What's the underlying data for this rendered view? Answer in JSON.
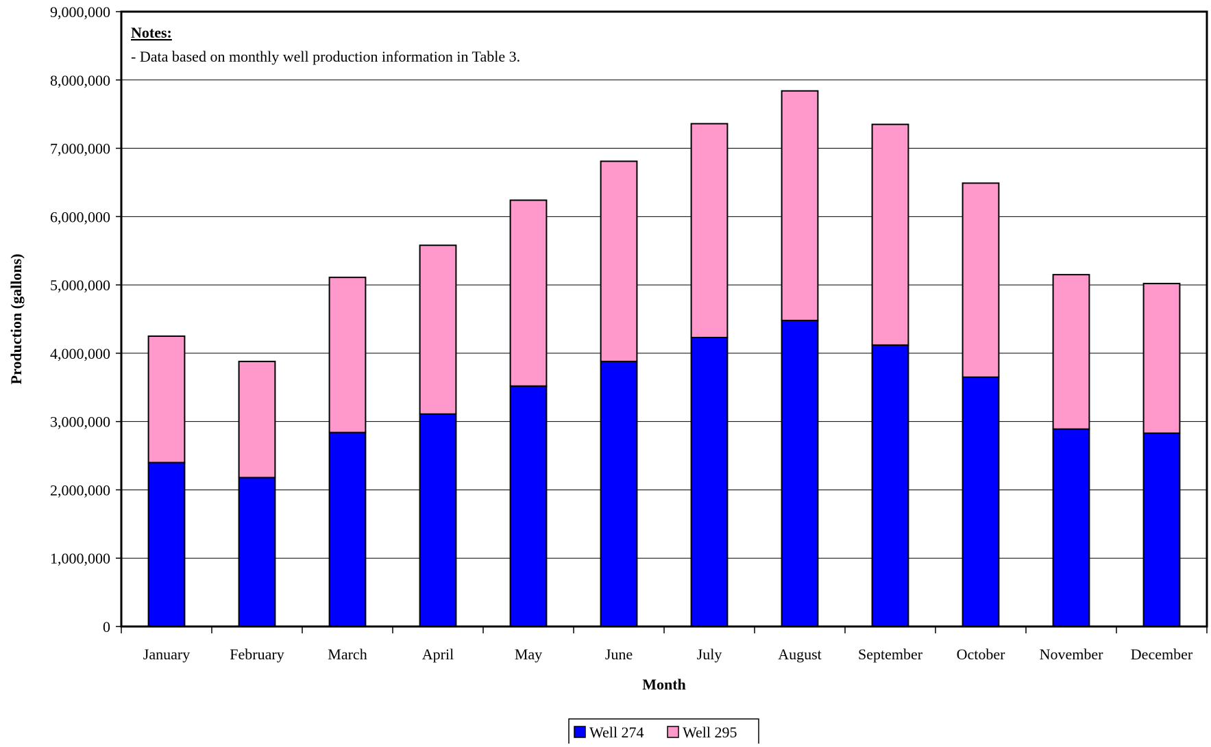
{
  "chart_data": {
    "type": "bar",
    "stacked": true,
    "title": "",
    "xlabel": "Month",
    "ylabel": "Production (gallons)",
    "categories": [
      "January",
      "February",
      "March",
      "April",
      "May",
      "June",
      "July",
      "August",
      "September",
      "October",
      "November",
      "December"
    ],
    "series": [
      {
        "name": "Well 274",
        "color": "#0000ff",
        "values": [
          2400000,
          2180000,
          2840000,
          3110000,
          3520000,
          3880000,
          4230000,
          4480000,
          4120000,
          3650000,
          2890000,
          2830000
        ]
      },
      {
        "name": "Well 295",
        "color": "#ff99cc",
        "values": [
          1850000,
          1700000,
          2270000,
          2470000,
          2720000,
          2930000,
          3130000,
          3360000,
          3230000,
          2840000,
          2260000,
          2190000
        ]
      }
    ],
    "ylim": [
      0,
      9000000
    ],
    "yticks": [
      0,
      1000000,
      2000000,
      3000000,
      4000000,
      5000000,
      6000000,
      7000000,
      8000000,
      9000000
    ],
    "ytick_labels": [
      "0",
      "1,000,000",
      "2,000,000",
      "3,000,000",
      "4,000,000",
      "5,000,000",
      "6,000,000",
      "7,000,000",
      "8,000,000",
      "9,000,000"
    ],
    "grid": true,
    "legend_position": "bottom-center",
    "notes": {
      "title": "Notes:",
      "text": "- Data based on monthly well production information in Table 3."
    }
  }
}
